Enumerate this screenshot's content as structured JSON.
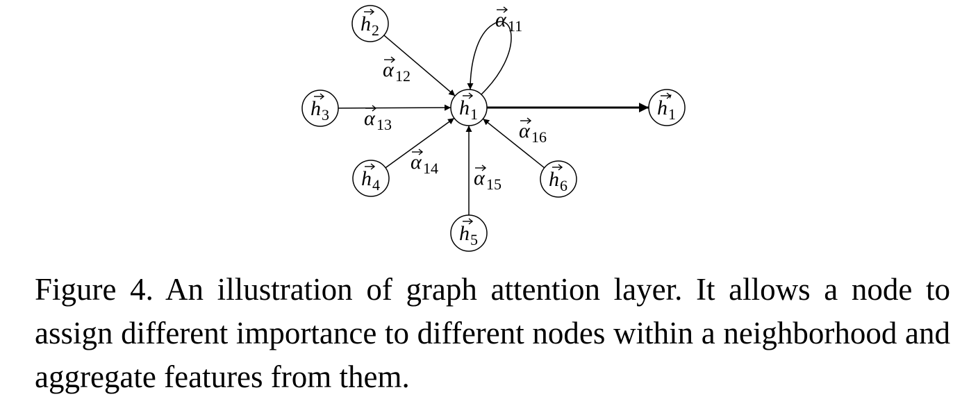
{
  "diagram": {
    "node_symbol": "h",
    "edge_symbol": "α",
    "nodes": [
      {
        "id": "h1",
        "sub": "1",
        "prime": false
      },
      {
        "id": "h2",
        "sub": "2",
        "prime": false
      },
      {
        "id": "h3",
        "sub": "3",
        "prime": false
      },
      {
        "id": "h4",
        "sub": "4",
        "prime": false
      },
      {
        "id": "h5",
        "sub": "5",
        "prime": false
      },
      {
        "id": "h6",
        "sub": "6",
        "prime": false
      },
      {
        "id": "h1_out",
        "sub": "1",
        "prime": true
      }
    ],
    "edges": [
      {
        "from": "h2",
        "to": "h1",
        "label_sub": "12"
      },
      {
        "from": "h3",
        "to": "h1",
        "label_sub": "13"
      },
      {
        "from": "h4",
        "to": "h1",
        "label_sub": "14"
      },
      {
        "from": "h5",
        "to": "h1",
        "label_sub": "15"
      },
      {
        "from": "h6",
        "to": "h1",
        "label_sub": "16"
      },
      {
        "from": "h1",
        "to": "h1",
        "label_sub": "11"
      },
      {
        "from": "h1",
        "to": "h1_out",
        "label_sub": ""
      }
    ]
  },
  "caption": {
    "text": "Figure 4. An illustration of graph attention layer. It allows a node to assign different importance to different nodes within a neighborhood and aggregate features from them."
  }
}
